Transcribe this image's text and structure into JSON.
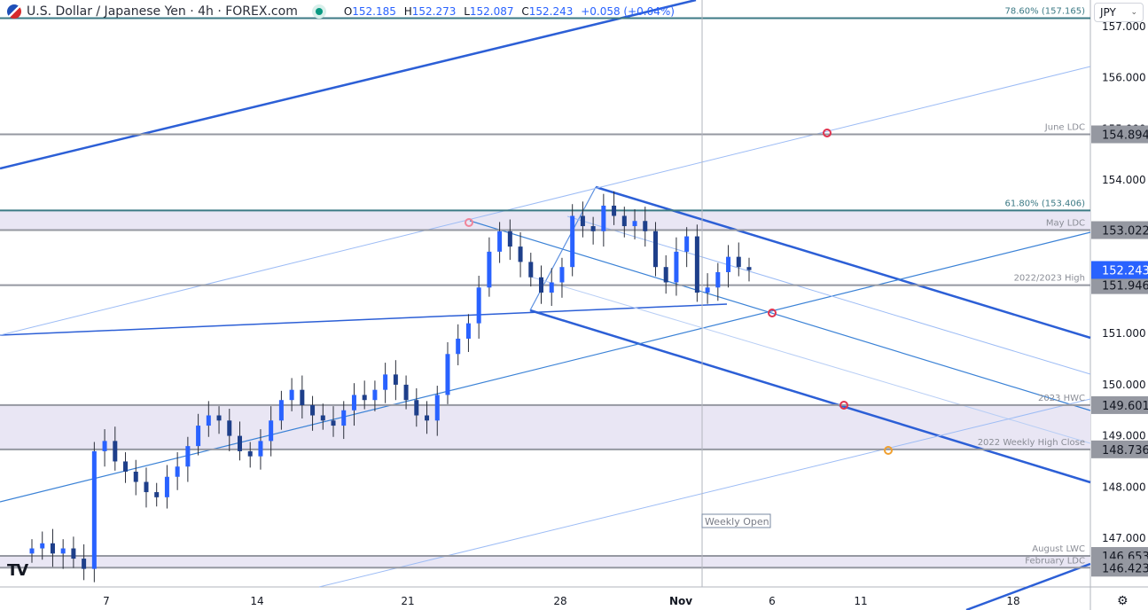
{
  "header": {
    "symbol_title": "U.S. Dollar / Japanese Yen · 4h · FOREX.com",
    "open_label": "O",
    "open": "152.185",
    "high_label": "H",
    "high": "152.273",
    "low_label": "L",
    "low": "152.087",
    "close_label": "C",
    "close": "152.243",
    "change": "+0.058 (+0.04%)",
    "market_status_icon": "green-dot-icon"
  },
  "currency_selector": {
    "value": "JPY",
    "icon": "chevron-down-icon"
  },
  "settings_icon": "gear-icon",
  "logo": "TV",
  "colors": {
    "up_candle": "#2962ff",
    "down_candle": "#1e3f8a",
    "zone_fill": "#e9e6f4",
    "level_line": "#9598a1",
    "fib_line": "#3c7a85",
    "trend_dark": "#2c5fd6",
    "trend_light": "#9dbcf5",
    "last_price_bg": "#2962ff",
    "level_label_bg": "#9598a1"
  },
  "chart_data": {
    "type": "candlestick",
    "title": "U.S. Dollar / Japanese Yen · 4h · FOREX.com",
    "xlabel": "",
    "ylabel": "JPY",
    "ylim": [
      146.1,
      157.2
    ],
    "x_ticks": [
      "7",
      "14",
      "21",
      "28",
      "Nov",
      "6",
      "11",
      "18"
    ],
    "y_ticks": [
      "157.000",
      "156.000",
      "155.000",
      "154.000",
      "153.000",
      "152.000",
      "151.000",
      "150.000",
      "149.000",
      "148.000",
      "147.000"
    ],
    "last_price": 152.243,
    "levels": [
      {
        "label": "78.60% (157.165)",
        "price": 157.165,
        "style": "fib"
      },
      {
        "label": "June LDC",
        "price": 154.894,
        "style": "level"
      },
      {
        "label": "61.80% (153.406)",
        "price": 153.406,
        "style": "fib"
      },
      {
        "label": "May LDC",
        "price": 153.022,
        "style": "level"
      },
      {
        "label": "2022/2023 High",
        "price": 151.946,
        "style": "level"
      },
      {
        "label": "2023 HWC",
        "price": 149.601,
        "style": "level"
      },
      {
        "label": "2022 Weekly High Close",
        "price": 148.736,
        "style": "level"
      },
      {
        "label": "August LWC",
        "price": 146.653,
        "style": "level"
      },
      {
        "label": "February LDC",
        "price": 146.423,
        "style": "level"
      }
    ],
    "zones": [
      [
        153.022,
        153.406
      ],
      [
        148.736,
        149.601
      ],
      [
        146.423,
        146.653
      ]
    ],
    "annotations": [
      "Weekly Open"
    ],
    "approx_closes": [
      146.8,
      146.9,
      146.7,
      146.8,
      146.6,
      146.4,
      148.7,
      148.9,
      148.5,
      148.3,
      148.1,
      147.9,
      147.8,
      148.2,
      148.4,
      148.8,
      149.2,
      149.4,
      149.3,
      149.0,
      148.7,
      148.6,
      148.9,
      149.3,
      149.7,
      149.9,
      149.6,
      149.4,
      149.3,
      149.2,
      149.5,
      149.8,
      149.7,
      149.9,
      150.2,
      150.0,
      149.7,
      149.4,
      149.3,
      149.8,
      150.6,
      150.9,
      151.2,
      151.9,
      152.6,
      153.0,
      152.7,
      152.4,
      152.1,
      151.8,
      152.0,
      152.3,
      153.3,
      153.1,
      153.0,
      153.5,
      153.3,
      153.1,
      153.2,
      153.0,
      152.3,
      152.0,
      152.6,
      152.9,
      151.8,
      151.9,
      152.2,
      152.5,
      152.3,
      152.24
    ]
  },
  "labels": {
    "weekly_open": "Weekly Open"
  }
}
